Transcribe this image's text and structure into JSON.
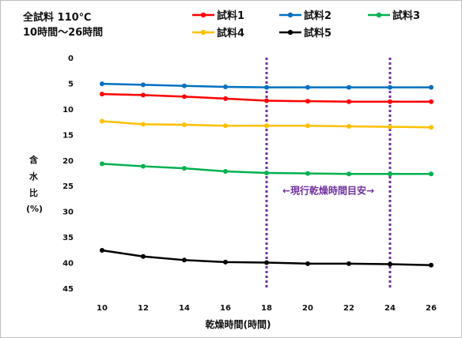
{
  "header": {
    "line1": "全試料 110℃",
    "line2": "10時間～26時間"
  },
  "chart_data": {
    "type": "line",
    "title": "",
    "xlabel": "乾燥時間(時間)",
    "ylabel": [
      "含",
      "水",
      "比",
      "(%)"
    ],
    "x": [
      10,
      12,
      14,
      16,
      18,
      20,
      22,
      24,
      26
    ],
    "xticks": [
      "10",
      "12",
      "14",
      "16",
      "18",
      "20",
      "22",
      "24",
      "26"
    ],
    "ylim": [
      0,
      45
    ],
    "y_inverted": true,
    "yticks": [
      "0",
      "5",
      "10",
      "15",
      "20",
      "25",
      "30",
      "35",
      "40",
      "45"
    ],
    "grid": false,
    "legend_position": "top-right",
    "series": [
      {
        "name": "試料1",
        "color": "#ff0000",
        "values": [
          7.1,
          7.3,
          7.6,
          8.0,
          8.4,
          8.5,
          8.6,
          8.6,
          8.6
        ]
      },
      {
        "name": "試料2",
        "color": "#0070c0",
        "values": [
          5.1,
          5.3,
          5.5,
          5.7,
          5.8,
          5.8,
          5.8,
          5.8,
          5.8
        ]
      },
      {
        "name": "試料3",
        "color": "#00b050",
        "values": [
          20.7,
          21.2,
          21.6,
          22.2,
          22.5,
          22.6,
          22.7,
          22.7,
          22.7
        ]
      },
      {
        "name": "試料4",
        "color": "#ffc000",
        "values": [
          12.4,
          13.0,
          13.1,
          13.3,
          13.3,
          13.3,
          13.4,
          13.5,
          13.6
        ]
      },
      {
        "name": "試料5",
        "color": "#000000",
        "values": [
          37.6,
          38.8,
          39.5,
          39.9,
          40.0,
          40.2,
          40.2,
          40.3,
          40.5
        ]
      }
    ],
    "reference_lines": {
      "x": [
        18,
        24
      ],
      "color": "#7030a0",
      "style": "dotted",
      "label": "←現行乾燥時間目安→"
    }
  }
}
